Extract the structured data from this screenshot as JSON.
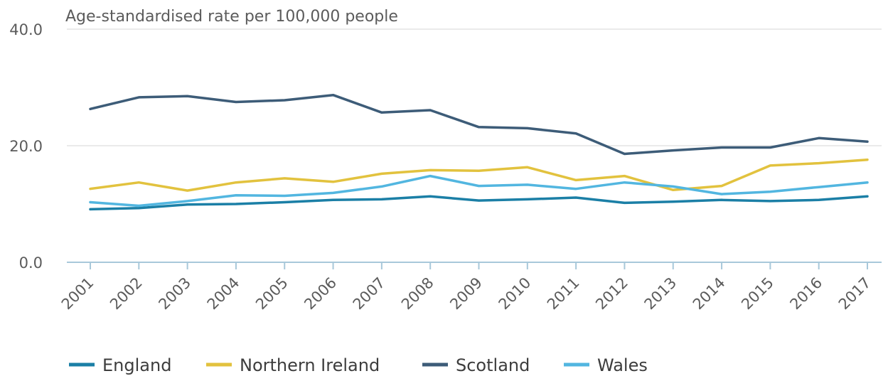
{
  "chart_data": {
    "type": "line",
    "title": "",
    "xlabel": "",
    "ylabel": "Age-standardised rate per 100,000 people",
    "ylim": [
      0,
      40
    ],
    "yticks": [
      "0.0",
      "20.0",
      "40.0"
    ],
    "ytick_values": [
      0,
      20,
      40
    ],
    "grid": "horizontal",
    "legend_position": "bottom-left",
    "x": [
      "2001",
      "2002",
      "2003",
      "2004",
      "2005",
      "2006",
      "2007",
      "2008",
      "2009",
      "2010",
      "2011",
      "2012",
      "2013",
      "2014",
      "2015",
      "2016",
      "2017"
    ],
    "series": [
      {
        "name": "England",
        "color": "#1b7fa6",
        "values": [
          9.1,
          9.3,
          9.9,
          10.0,
          10.3,
          10.7,
          10.8,
          11.3,
          10.6,
          10.8,
          11.1,
          10.2,
          10.4,
          10.7,
          10.5,
          10.7,
          11.3
        ]
      },
      {
        "name": "Northern Ireland",
        "color": "#e2c23e",
        "values": [
          12.6,
          13.7,
          12.3,
          13.7,
          14.4,
          13.8,
          15.2,
          15.8,
          15.7,
          16.3,
          14.1,
          14.8,
          12.4,
          13.1,
          16.6,
          17.0,
          17.6
        ]
      },
      {
        "name": "Scotland",
        "color": "#3d5c78",
        "values": [
          26.3,
          28.3,
          28.5,
          27.5,
          27.8,
          28.7,
          25.7,
          26.1,
          23.2,
          23.0,
          22.1,
          18.6,
          19.2,
          19.7,
          19.7,
          21.3,
          20.7
        ]
      },
      {
        "name": "Wales",
        "color": "#52b6e0",
        "values": [
          10.3,
          9.7,
          10.5,
          11.5,
          11.4,
          11.9,
          13.0,
          14.8,
          13.1,
          13.3,
          12.6,
          13.7,
          13.0,
          11.7,
          12.1,
          12.9,
          13.7
        ]
      }
    ]
  }
}
